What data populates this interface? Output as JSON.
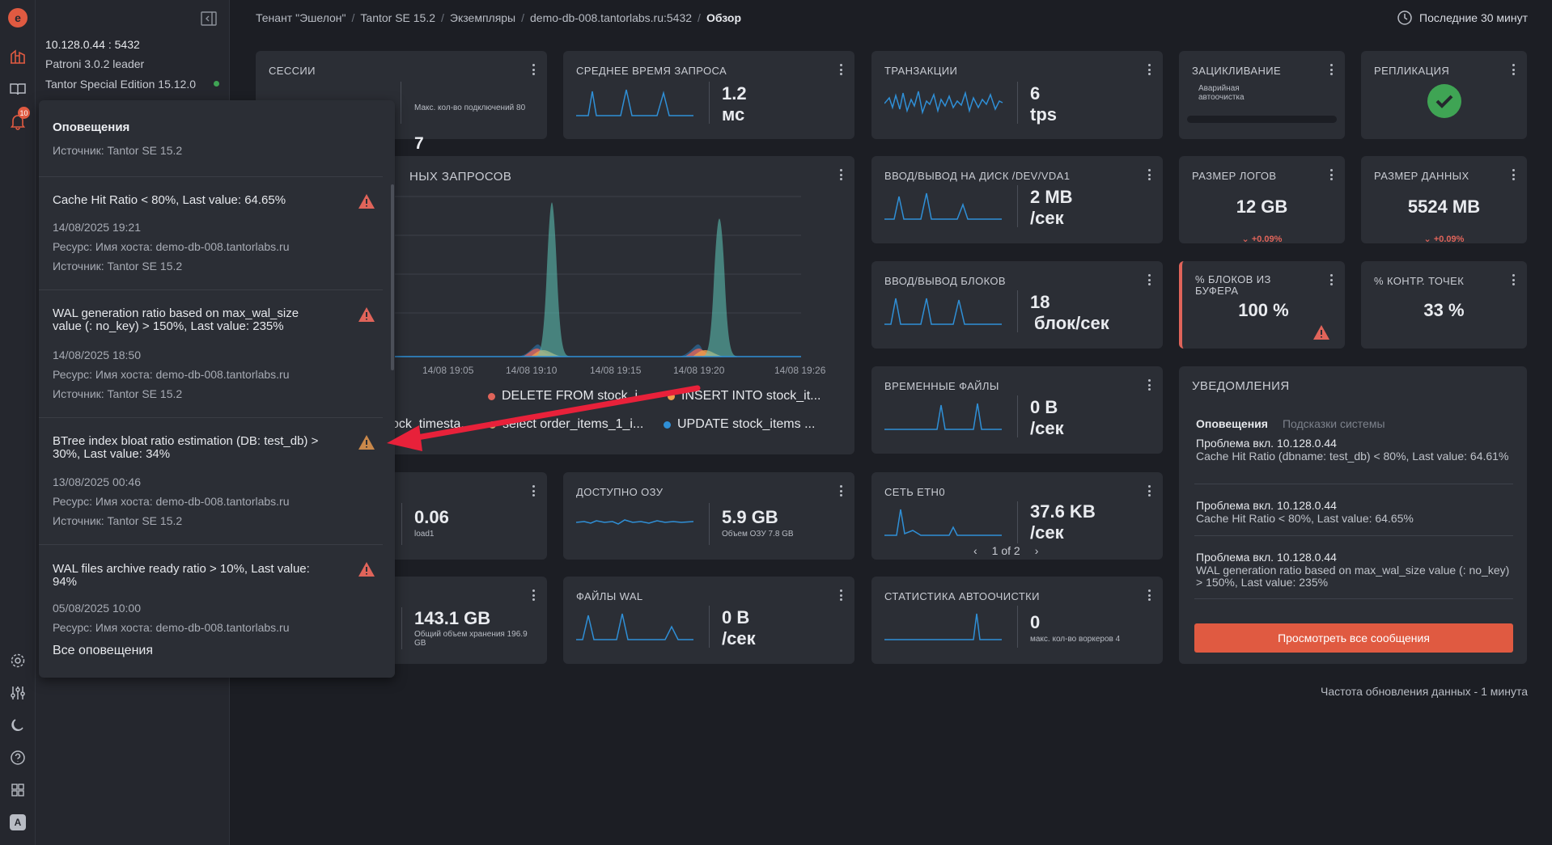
{
  "instance": {
    "address": "10.128.0.44 : 5432",
    "role": "Patroni 3.0.2 leader",
    "version": "Tantor Special Edition 15.12.0"
  },
  "nav": {
    "notification_count": "10",
    "avatar_letter": "A"
  },
  "breadcrumb": [
    "Тенант \"Эшелон\"",
    "Tantor SE 15.2",
    "Экземпляры",
    "demo-db-008.tantorlabs.ru:5432",
    "Обзор"
  ],
  "time_range": "Последние 30 минут",
  "colors": {
    "accent": "#e05a41",
    "line": "#2f8fd6",
    "ok": "#3fa454",
    "warn": "#e0645a",
    "teal": "#5ec7b8"
  },
  "cards": {
    "sessions": {
      "title": "Сессии",
      "value": "7",
      "sub": "Макс. кол-во подключений 80"
    },
    "avg_query": {
      "title": "Среднее время запроса",
      "value": "1.2",
      "unit": "мс"
    },
    "transactions": {
      "title": "Транзакции",
      "value": "6",
      "unit": "tps"
    },
    "wraparound": {
      "title": "Зацикливание",
      "sub": "Аварийная автоочистка"
    },
    "replication": {
      "title": "Репликация"
    },
    "queries": {
      "title": "ных запросов"
    },
    "disk_io": {
      "title": "Ввод/вывод на диск /dev/vda1",
      "value": "2 MB",
      "unit": "/сек"
    },
    "log_size": {
      "title": "Размер логов",
      "value": "12 GB",
      "delta": "+0.09%"
    },
    "data_size": {
      "title": "Размер данных",
      "value": "5524 MB",
      "delta": "+0.09%"
    },
    "block_io": {
      "title": "Ввод/вывод блоков",
      "value": "18",
      "unit": "блок/сек"
    },
    "buffer_hit": {
      "title": "% блоков из буфера",
      "value": "100 %"
    },
    "checkpoints": {
      "title": "% контр. точек",
      "value": "33 %"
    },
    "temp_files": {
      "title": "Временные файлы",
      "value": "0 B",
      "unit": "/сек"
    },
    "load": {
      "value": "0.06",
      "sub": "load1"
    },
    "ram": {
      "title": "Доступно ОЗУ",
      "value": "5.9 GB",
      "sub": "Объем ОЗУ 7.8 GB"
    },
    "network": {
      "title": "Сеть eth0",
      "value": "37.6 KB",
      "unit": "/сек",
      "pager": "1 of 2"
    },
    "storage": {
      "value": "143.1 GB",
      "sub": "Общий объем хранения 196.9 GB"
    },
    "wal": {
      "title": "Файлы WAL",
      "value": "0 B",
      "unit": "/сек"
    },
    "autovacuum": {
      "title": "Статистика автоочистки",
      "value": "0",
      "sub": "макс. кол-во воркеров 4"
    }
  },
  "chart_data": {
    "type": "area",
    "title": "ных запросов",
    "x": [
      "14/08 19:05",
      "14/08 19:10",
      "14/08 19:15",
      "14/08 19:20",
      "14/08 19:26"
    ],
    "series": [
      {
        "name": "DELETE FROM stock_i...",
        "color": "#e0645a"
      },
      {
        "name": "INSERT INTO stock_it...",
        "color": "#f0a04b"
      },
      {
        "name": "ock_timesta...",
        "color": "#5ec7b8"
      },
      {
        "name": "select order_items_1_i...",
        "color": "#c7a46b"
      },
      {
        "name": "UPDATE stock_items ...",
        "color": "#2f8fd6"
      }
    ]
  },
  "alerts_popup": {
    "title": "Оповещения",
    "top_source": "Источник: Tantor SE 15.2",
    "items": [
      {
        "title": "Cache Hit Ratio < 80%, Last value: 64.65%",
        "date": "14/08/2025 19:21",
        "resource": "Ресурс: Имя хоста: demo-db-008.tantorlabs.ru",
        "source": "Источник: Tantor SE 15.2",
        "severity": "critical"
      },
      {
        "title": "WAL generation ratio based on max_wal_size value (: no_key) > 150%, Last value: 235%",
        "date": "14/08/2025 18:50",
        "resource": "Ресурс: Имя хоста: demo-db-008.tantorlabs.ru",
        "source": "Источник: Tantor SE 15.2",
        "severity": "critical"
      },
      {
        "title": "BTree index bloat ratio estimation (DB: test_db) > 30%, Last value: 34%",
        "date": "13/08/2025 00:46",
        "resource": "Ресурс: Имя хоста: demo-db-008.tantorlabs.ru",
        "source": "Источник: Tantor SE 15.2",
        "severity": "warning"
      },
      {
        "title": "WAL files archive ready ratio > 10%, Last value: 94%",
        "date": "05/08/2025 10:00",
        "resource": "Ресурс: Имя хоста: demo-db-008.tantorlabs.ru",
        "source": "",
        "severity": "critical"
      }
    ],
    "all_link": "Все оповещения"
  },
  "notifications": {
    "title": "Уведомления",
    "tab_active": "Оповещения",
    "tab_other": "Подсказки системы",
    "items": [
      {
        "head": "Проблема вкл. 10.128.0.44",
        "text": "Cache Hit Ratio (dbname: test_db) < 80%, Last value: 64.61%"
      },
      {
        "head": "Проблема вкл. 10.128.0.44",
        "text": "Cache Hit Ratio < 80%, Last value: 64.65%"
      },
      {
        "head": "Проблема вкл. 10.128.0.44",
        "text": "WAL generation ratio based on max_wal_size value (: no_key) > 150%, Last value: 235%"
      }
    ],
    "button": "Просмотреть все сообщения"
  },
  "refresh_note": "Частота обновления данных - 1 минута"
}
